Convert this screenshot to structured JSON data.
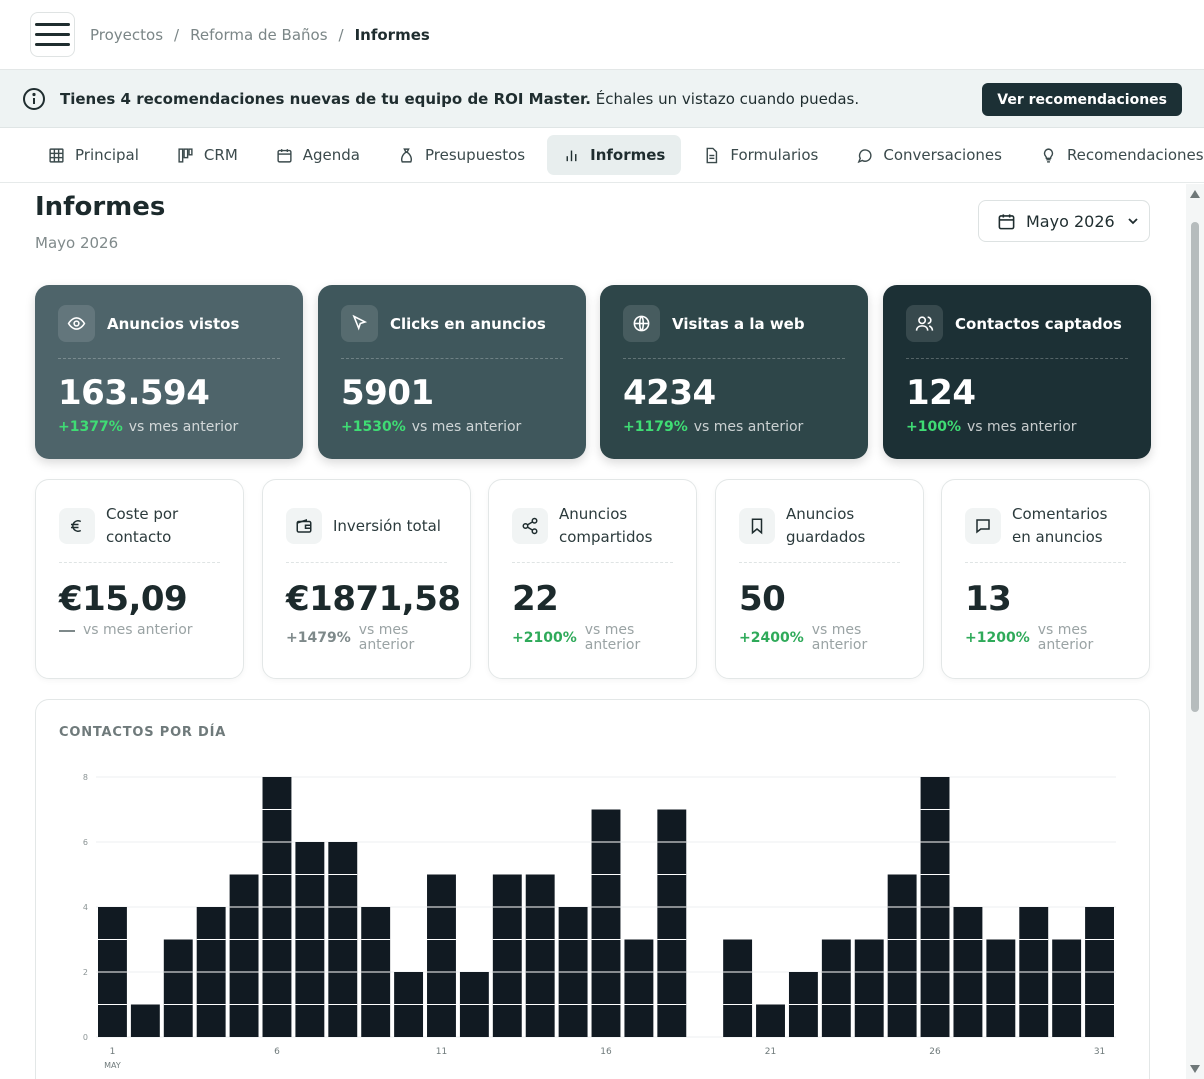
{
  "breadcrumb": {
    "items": [
      "Proyectos",
      "Reforma de Baños"
    ],
    "current": "Informes",
    "separator": "/"
  },
  "banner": {
    "bold": "Tienes 4 recomendaciones nuevas de tu equipo de ROI Master.",
    "text": " Échales un vistazo cuando puedas.",
    "button": "Ver recomendaciones"
  },
  "tabs": [
    {
      "label": "Principal",
      "icon": "grid-icon"
    },
    {
      "label": "CRM",
      "icon": "kanban-icon"
    },
    {
      "label": "Agenda",
      "icon": "calendar-icon"
    },
    {
      "label": "Presupuestos",
      "icon": "money-bag-icon"
    },
    {
      "label": "Informes",
      "icon": "bar-chart-icon",
      "active": true
    },
    {
      "label": "Formularios",
      "icon": "document-icon"
    },
    {
      "label": "Conversaciones",
      "icon": "chat-icon"
    },
    {
      "label": "Recomendaciones",
      "icon": "lightbulb-icon"
    }
  ],
  "page": {
    "title": "Informes",
    "subtitle": "Mayo 2026",
    "date_selector": "Mayo 2026"
  },
  "kpis": [
    {
      "label": "Anuncios vistos",
      "value": "163.594",
      "delta": "+1377%",
      "vs": "vs mes anterior",
      "icon": "eye-icon",
      "color": "#4e646a"
    },
    {
      "label": "Clicks en anuncios",
      "value": "5901",
      "delta": "+1530%",
      "vs": "vs mes anterior",
      "icon": "cursor-icon",
      "color": "#3f575c"
    },
    {
      "label": "Visitas a la web",
      "value": "4234",
      "delta": "+1179%",
      "vs": "vs mes anterior",
      "icon": "globe-icon",
      "color": "#2e4649"
    },
    {
      "label": "Contactos captados",
      "value": "124",
      "delta": "+100%",
      "vs": "vs mes anterior",
      "icon": "users-icon",
      "color": "#1c3035"
    }
  ],
  "metrics": [
    {
      "label": "Coste por contacto",
      "value": "€15,09",
      "delta": "",
      "vs": "vs mes anterior",
      "icon": "euro-icon"
    },
    {
      "label": "Inversión total",
      "value": "€1871,58",
      "delta": "+1479%",
      "vs": "vs mes anterior",
      "icon": "wallet-icon"
    },
    {
      "label": "Anuncios compartidos",
      "value": "22",
      "delta": "+2100%",
      "vs": "vs mes anterior",
      "icon": "share-icon"
    },
    {
      "label": "Anuncios guardados",
      "value": "50",
      "delta": "+2400%",
      "vs": "vs mes anterior",
      "icon": "bookmark-icon"
    },
    {
      "label": "Comentarios en anuncios",
      "value": "13",
      "delta": "+1200%",
      "vs": "vs mes anterior",
      "icon": "comment-icon"
    }
  ],
  "chart_data": {
    "type": "bar",
    "title": "CONTACTOS POR DÍA",
    "x": [
      1,
      2,
      3,
      4,
      5,
      6,
      7,
      8,
      9,
      10,
      11,
      12,
      13,
      14,
      15,
      16,
      17,
      18,
      19,
      20,
      21,
      22,
      23,
      24,
      25,
      26,
      27,
      28,
      29,
      30,
      31
    ],
    "values": [
      4,
      1,
      3,
      4,
      5,
      8,
      6,
      6,
      4,
      2,
      5,
      2,
      5,
      5,
      4,
      7,
      3,
      7,
      0,
      3,
      1,
      2,
      3,
      3,
      5,
      8,
      4,
      3,
      4,
      3,
      4
    ],
    "x_tick_labels": [
      "1",
      "6",
      "11",
      "16",
      "21",
      "26",
      "31"
    ],
    "x_month_label": "MAY",
    "y_ticks": [
      "0",
      "2",
      "4",
      "6",
      "8"
    ],
    "ylim": [
      0,
      8
    ],
    "bar_color": "#111a22",
    "grid": true
  }
}
